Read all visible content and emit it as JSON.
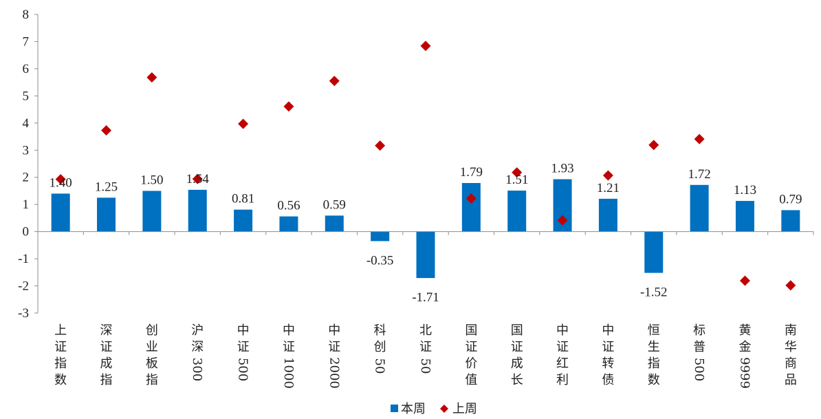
{
  "chart_data": {
    "type": "bar",
    "categories": [
      "上证指数",
      "深证成指",
      "创业板指",
      "沪深300",
      "中证500",
      "中证1000",
      "中证2000",
      "科创50",
      "北证50",
      "国证价值",
      "国证成长",
      "中证红利",
      "中证转债",
      "恒生指数",
      "标普500",
      "黄金9999",
      "南华商品"
    ],
    "series": [
      {
        "name": "本周",
        "kind": "bar",
        "color": "#0070C0",
        "values": [
          1.4,
          1.25,
          1.5,
          1.54,
          0.81,
          0.56,
          0.59,
          -0.35,
          -1.71,
          1.79,
          1.51,
          1.93,
          1.21,
          -1.52,
          1.72,
          1.13,
          0.79
        ],
        "labels": [
          "1.40",
          "1.25",
          "1.50",
          "1.54",
          "0.81",
          "0.56",
          "0.59",
          "-0.35",
          "-1.71",
          "1.79",
          "1.51",
          "1.93",
          "1.21",
          "-1.52",
          "1.72",
          "1.13",
          "0.79"
        ]
      },
      {
        "name": "上周",
        "kind": "scatter",
        "marker": "diamond",
        "color": "#C00000",
        "values": [
          1.93,
          3.73,
          5.68,
          1.94,
          3.97,
          4.61,
          5.55,
          3.17,
          6.84,
          1.22,
          2.18,
          0.42,
          2.07,
          3.19,
          3.41,
          -1.81,
          -1.98
        ]
      }
    ],
    "ylim": [
      -3,
      8
    ],
    "yticks": [
      -3,
      -2,
      -1,
      0,
      1,
      2,
      3,
      4,
      5,
      6,
      7,
      8
    ],
    "xlabel": "",
    "ylabel": "",
    "title": "",
    "grid": false,
    "legend_position": "bottom-center"
  }
}
